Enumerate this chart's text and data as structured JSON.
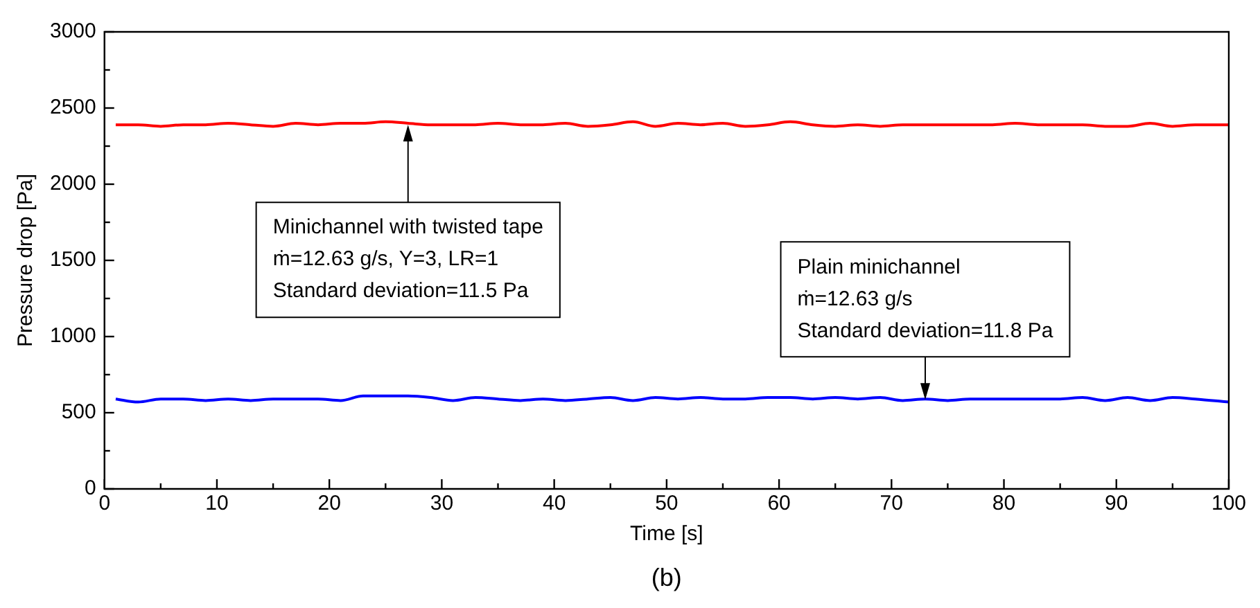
{
  "chart_data": {
    "type": "line",
    "xlabel": "Time [s]",
    "ylabel": "Pressure drop [Pa]",
    "xlim": [
      0,
      100
    ],
    "xticks": [
      0,
      10,
      20,
      30,
      40,
      50,
      60,
      70,
      80,
      90,
      100
    ],
    "ylim": [
      0,
      3000
    ],
    "yticks": [
      0,
      500,
      1000,
      1500,
      2000,
      2500,
      3000
    ],
    "grid": false,
    "legend": false,
    "marker": "none",
    "line_style": "solid",
    "series": [
      {
        "color": "#ff0000",
        "x": [
          1,
          3,
          5,
          7,
          9,
          11,
          13,
          15,
          17,
          19,
          21,
          23,
          25,
          27,
          29,
          31,
          33,
          35,
          37,
          39,
          41,
          43,
          45,
          47,
          49,
          51,
          53,
          55,
          57,
          59,
          61,
          63,
          65,
          67,
          69,
          71,
          73,
          75,
          77,
          79,
          81,
          83,
          85,
          87,
          89,
          91,
          93,
          95,
          97,
          100
        ],
        "values": [
          2390,
          2390,
          2380,
          2390,
          2390,
          2400,
          2390,
          2380,
          2400,
          2390,
          2400,
          2400,
          2410,
          2400,
          2390,
          2390,
          2390,
          2400,
          2390,
          2390,
          2400,
          2380,
          2390,
          2410,
          2380,
          2400,
          2390,
          2400,
          2380,
          2390,
          2410,
          2390,
          2380,
          2390,
          2380,
          2390,
          2390,
          2390,
          2390,
          2390,
          2400,
          2390,
          2390,
          2390,
          2380,
          2380,
          2400,
          2380,
          2390,
          2390
        ]
      },
      {
        "color": "#0000ff",
        "x": [
          1,
          3,
          5,
          7,
          9,
          11,
          13,
          15,
          17,
          19,
          21,
          23,
          25,
          27,
          29,
          31,
          33,
          35,
          37,
          39,
          41,
          43,
          45,
          47,
          49,
          51,
          53,
          55,
          57,
          59,
          61,
          63,
          65,
          67,
          69,
          71,
          73,
          75,
          77,
          79,
          81,
          83,
          85,
          87,
          89,
          91,
          93,
          95,
          97,
          100
        ],
        "values": [
          590,
          570,
          590,
          590,
          580,
          590,
          580,
          590,
          590,
          590,
          580,
          610,
          610,
          610,
          600,
          580,
          600,
          590,
          580,
          590,
          580,
          590,
          600,
          580,
          600,
          590,
          600,
          590,
          590,
          600,
          600,
          590,
          600,
          590,
          600,
          580,
          590,
          580,
          590,
          590,
          590,
          590,
          590,
          600,
          580,
          600,
          580,
          600,
          590,
          570
        ]
      }
    ],
    "annotations": [
      {
        "text": "Minichannel with twisted tape\nṁ=12.63 g/s, Y=3, LR=1\nStandard deviation=11.5 Pa",
        "x": 27,
        "y": 2390
      },
      {
        "text": "Plain minichannel\nṁ=12.63 g/s\nStandard deviation=11.8 Pa",
        "x": 73,
        "y": 585
      },
      "(b)"
    ]
  }
}
